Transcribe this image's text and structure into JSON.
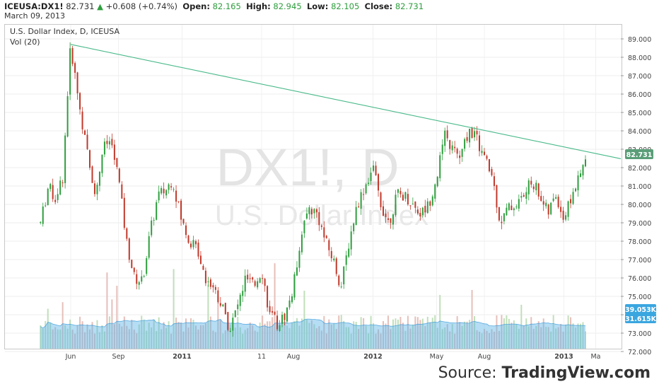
{
  "header": {
    "symbol": "ICEUSA:DX1!",
    "last": "82.731",
    "change": "+0.608 (+0.74%)",
    "open_label": "Open:",
    "open": "82.165",
    "high_label": "High:",
    "high": "82.945",
    "low_label": "Low:",
    "low": "82.105",
    "close_label": "Close:",
    "close": "82.731",
    "date": "March 09, 2013"
  },
  "chart_title": "U.S. Dollar Index, D, ICEUSA",
  "volume_label": "Vol (20)",
  "watermark": {
    "line1": "DX1!, D",
    "line2": "U.S. Dollar Index"
  },
  "source": {
    "prefix": "Source: ",
    "brand": "TradingView.com"
  },
  "colors": {
    "up": "#2e9e3e",
    "down": "#c0392b",
    "trendline": "#48b98a",
    "volume": "#5ab4e6",
    "price_badge": "#5a9e78",
    "volume_badge": "#3aa6e0"
  },
  "chart_data": {
    "type": "candlestick",
    "x_tick_labels": [
      "Jun",
      "Sep",
      "2011",
      "11",
      "Aug",
      "2012",
      "May",
      "Aug",
      "2013",
      "Ma"
    ],
    "x_tick_month_index": [
      0,
      3,
      7,
      12,
      14,
      19,
      23,
      26,
      31,
      33
    ],
    "y_ticks": [
      "89.000",
      "88.000",
      "87.000",
      "86.000",
      "85.000",
      "84.000",
      "83.000",
      "82.000",
      "81.000",
      "80.000",
      "79.000",
      "78.000",
      "77.000",
      "76.000",
      "75.000",
      "74.000",
      "73.000",
      "72.000"
    ],
    "ylim": [
      72,
      89.5
    ],
    "price_path": [
      [
        -1.9,
        79.0
      ],
      [
        -1.4,
        81.0
      ],
      [
        -1.0,
        80.3
      ],
      [
        -0.5,
        81.5
      ],
      [
        -0.2,
        86.0
      ],
      [
        0.0,
        88.7
      ],
      [
        0.3,
        86.8
      ],
      [
        0.7,
        84.5
      ],
      [
        1.2,
        82.0
      ],
      [
        1.6,
        80.5
      ],
      [
        2.0,
        83.0
      ],
      [
        2.5,
        83.5
      ],
      [
        3.0,
        81.5
      ],
      [
        3.5,
        78.0
      ],
      [
        4.0,
        76.0
      ],
      [
        4.5,
        75.8
      ],
      [
        5.0,
        78.5
      ],
      [
        5.5,
        80.5
      ],
      [
        6.0,
        80.8
      ],
      [
        6.4,
        81.4
      ],
      [
        7.0,
        79.0
      ],
      [
        7.5,
        78.0
      ],
      [
        8.0,
        77.5
      ],
      [
        8.5,
        76.0
      ],
      [
        9.0,
        75.5
      ],
      [
        9.5,
        74.5
      ],
      [
        10.0,
        73.2
      ],
      [
        10.5,
        74.5
      ],
      [
        11.0,
        76.0
      ],
      [
        11.5,
        75.5
      ],
      [
        12.0,
        76.5
      ],
      [
        12.5,
        74.0
      ],
      [
        13.0,
        73.5
      ],
      [
        13.5,
        74.0
      ],
      [
        14.0,
        75.5
      ],
      [
        14.5,
        78.5
      ],
      [
        15.0,
        79.8
      ],
      [
        15.5,
        79.5
      ],
      [
        16.0,
        78.0
      ],
      [
        16.5,
        77.0
      ],
      [
        17.0,
        75.5
      ],
      [
        17.5,
        78.0
      ],
      [
        18.0,
        80.0
      ],
      [
        18.5,
        81.0
      ],
      [
        19.0,
        82.0
      ],
      [
        19.5,
        80.0
      ],
      [
        20.0,
        79.0
      ],
      [
        20.5,
        80.5
      ],
      [
        21.0,
        80.5
      ],
      [
        21.5,
        80.0
      ],
      [
        22.0,
        79.5
      ],
      [
        22.5,
        80.0
      ],
      [
        23.0,
        81.5
      ],
      [
        23.5,
        83.7
      ],
      [
        24.0,
        83.0
      ],
      [
        24.5,
        82.5
      ],
      [
        25.0,
        84.0
      ],
      [
        25.4,
        83.8
      ],
      [
        26.0,
        82.5
      ],
      [
        26.5,
        81.5
      ],
      [
        27.0,
        79.0
      ],
      [
        27.5,
        79.8
      ],
      [
        28.0,
        80.0
      ],
      [
        28.5,
        80.5
      ],
      [
        29.0,
        81.3
      ],
      [
        29.5,
        80.5
      ],
      [
        30.0,
        79.5
      ],
      [
        30.5,
        80.5
      ],
      [
        31.0,
        79.2
      ],
      [
        31.5,
        80.5
      ],
      [
        32.0,
        81.5
      ],
      [
        32.5,
        82.731
      ]
    ],
    "trendline": {
      "start": [
        0.0,
        88.7
      ],
      "end": [
        33.2,
        82.731
      ]
    },
    "last_price": "82.731",
    "volume": {
      "label": "Vol (20)",
      "last": "39.053K",
      "average": "31.615K"
    }
  }
}
